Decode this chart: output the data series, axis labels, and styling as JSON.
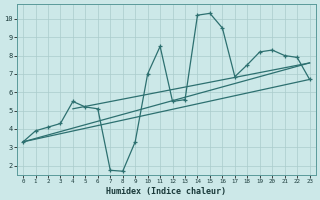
{
  "xlabel": "Humidex (Indice chaleur)",
  "bg_color": "#cce8e8",
  "line_color": "#2d7070",
  "grid_color": "#aacccc",
  "xlim": [
    -0.5,
    23.5
  ],
  "ylim": [
    1.5,
    10.8
  ],
  "xticks": [
    0,
    1,
    2,
    3,
    4,
    5,
    6,
    7,
    8,
    9,
    10,
    11,
    12,
    13,
    14,
    15,
    16,
    17,
    18,
    19,
    20,
    21,
    22,
    23
  ],
  "yticks": [
    2,
    3,
    4,
    5,
    6,
    7,
    8,
    9,
    10
  ],
  "curve_x": [
    0,
    1,
    2,
    3,
    4,
    5,
    6,
    7,
    8,
    9,
    10,
    11,
    12,
    13,
    14,
    15,
    16,
    17,
    18,
    19,
    20,
    21,
    22,
    23
  ],
  "curve_y": [
    3.3,
    3.9,
    4.1,
    4.3,
    5.5,
    5.2,
    5.1,
    1.75,
    1.7,
    3.3,
    7.0,
    8.5,
    5.5,
    5.6,
    10.2,
    10.3,
    9.5,
    6.85,
    7.5,
    8.2,
    8.3,
    8.0,
    7.9,
    6.7
  ],
  "line1_x": [
    0,
    23
  ],
  "line1_y": [
    3.3,
    6.7
  ],
  "line2_x": [
    0,
    23
  ],
  "line2_y": [
    3.3,
    7.6
  ],
  "line3_x": [
    4,
    23
  ],
  "line3_y": [
    5.1,
    7.6
  ]
}
